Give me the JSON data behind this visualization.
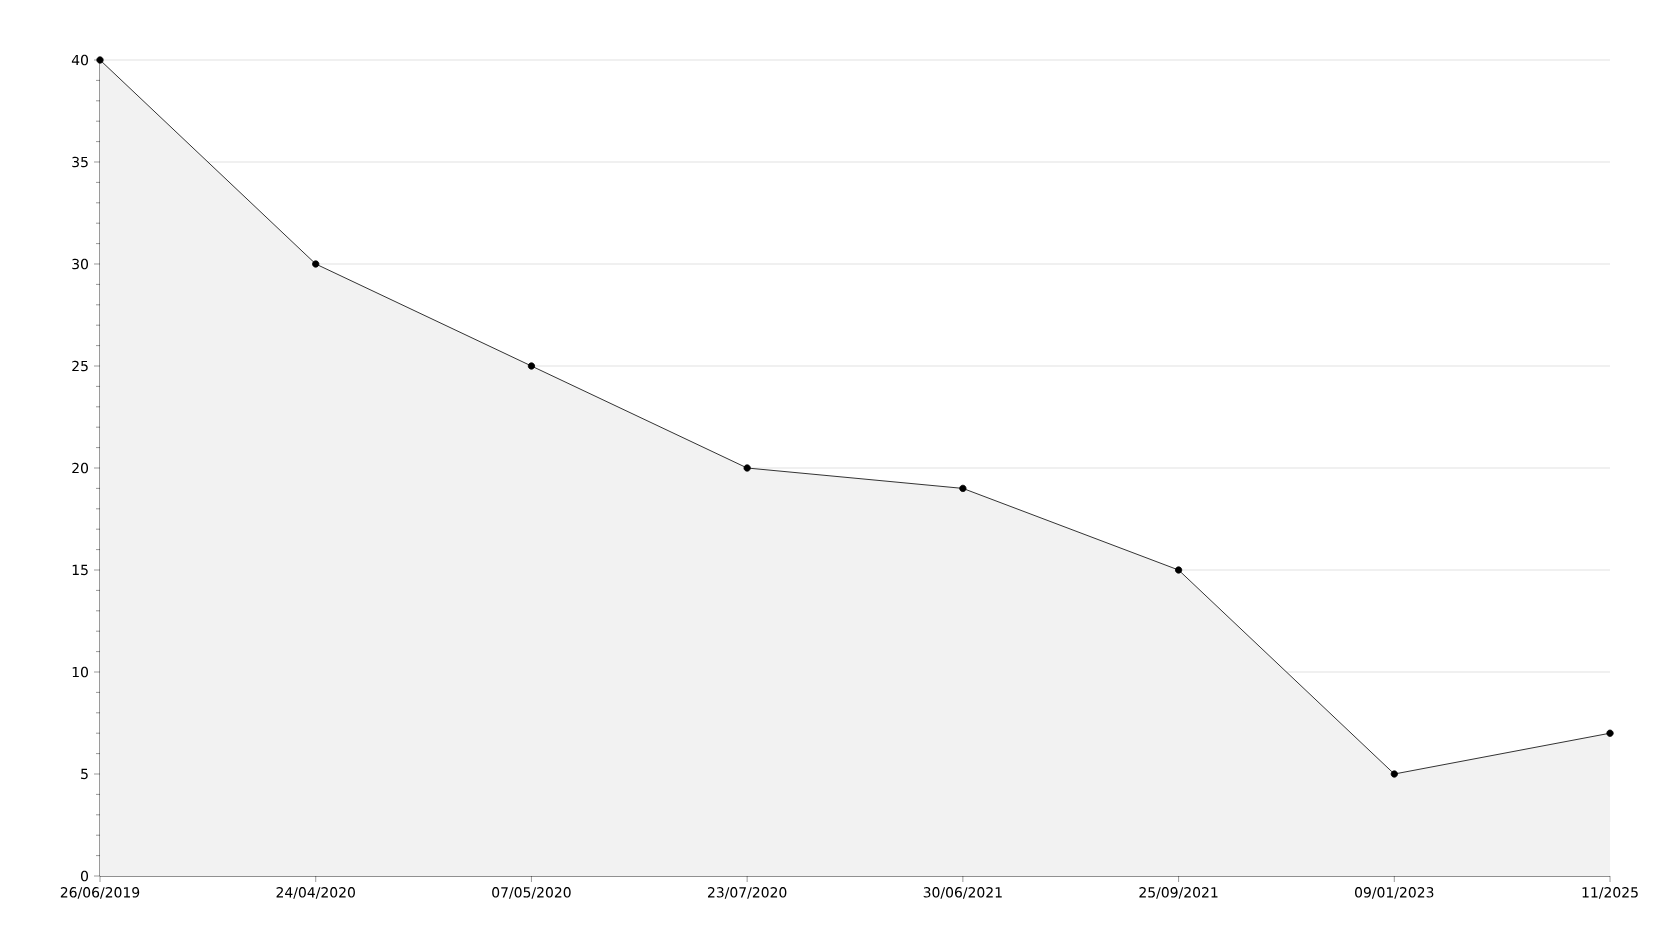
{
  "chart_data": {
    "type": "area",
    "categories": [
      "26/06/2019",
      "24/04/2020",
      "07/05/2020",
      "23/07/2020",
      "30/06/2021",
      "25/09/2021",
      "09/01/2023",
      "11/2025"
    ],
    "values": [
      40,
      30,
      25,
      20,
      19,
      15,
      5,
      7
    ],
    "color": "#f2f2f2",
    "ylim": [
      0,
      40
    ],
    "yticks": [
      0,
      5,
      10,
      15,
      20,
      25,
      30,
      35,
      40
    ],
    "grid": "y",
    "marker": "circle"
  }
}
